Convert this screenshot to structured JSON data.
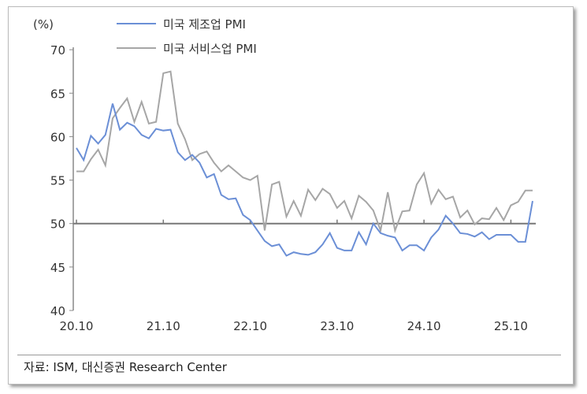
{
  "chart_data": {
    "type": "line",
    "ylabel": "(%)",
    "ylim": [
      40,
      70
    ],
    "yticks": [
      40,
      45,
      50,
      55,
      60,
      65,
      70
    ],
    "x_start": "2020.10",
    "x_end": "2026.01",
    "frequency": "monthly",
    "xtick_labels": [
      "20.10",
      "21.10",
      "22.10",
      "23.10",
      "24.10",
      "25.10"
    ],
    "reference_line": 50,
    "legend_placement": "top",
    "series": [
      {
        "name": "미국 제조업 PMI",
        "color": "#6b8fd6",
        "values": [
          58.7,
          57.3,
          60.1,
          59.2,
          60.2,
          63.8,
          60.8,
          61.6,
          61.2,
          60.2,
          59.8,
          60.9,
          60.7,
          60.8,
          58.2,
          57.3,
          57.9,
          57.0,
          55.3,
          55.7,
          53.3,
          52.8,
          52.9,
          51.0,
          50.4,
          49.2,
          48.0,
          47.4,
          47.6,
          46.3,
          46.7,
          46.5,
          46.4,
          46.7,
          47.6,
          48.9,
          47.2,
          46.9,
          46.9,
          49.0,
          47.6,
          50.0,
          48.9,
          48.6,
          48.4,
          46.9,
          47.5,
          47.5,
          46.9,
          48.4,
          49.3,
          50.9,
          50.0,
          48.9,
          48.8,
          48.5,
          49.0,
          48.2,
          48.7,
          48.7,
          48.7,
          47.9,
          47.9,
          52.6
        ]
      },
      {
        "name": "미국 서비스업 PMI",
        "color": "#a6a6a6",
        "values": [
          56.0,
          56.0,
          57.4,
          58.5,
          56.7,
          62.1,
          63.3,
          64.4,
          61.7,
          64.0,
          61.5,
          61.7,
          67.3,
          67.5,
          61.5,
          59.7,
          57.3,
          58.0,
          58.3,
          57.0,
          56.0,
          56.7,
          56.0,
          55.3,
          55.0,
          55.5,
          49.2,
          54.5,
          54.8,
          50.8,
          52.6,
          50.9,
          53.9,
          52.7,
          54.0,
          53.4,
          51.8,
          52.6,
          50.6,
          53.2,
          52.5,
          51.5,
          49.2,
          53.6,
          49.2,
          51.4,
          51.5,
          54.5,
          55.8,
          52.3,
          53.9,
          52.8,
          53.1,
          50.7,
          51.5,
          49.9,
          50.6,
          50.5,
          51.8,
          50.4,
          52.1,
          52.5,
          53.8,
          53.8
        ]
      }
    ]
  },
  "footer": "자료: ISM, 대신증권 Research Center"
}
